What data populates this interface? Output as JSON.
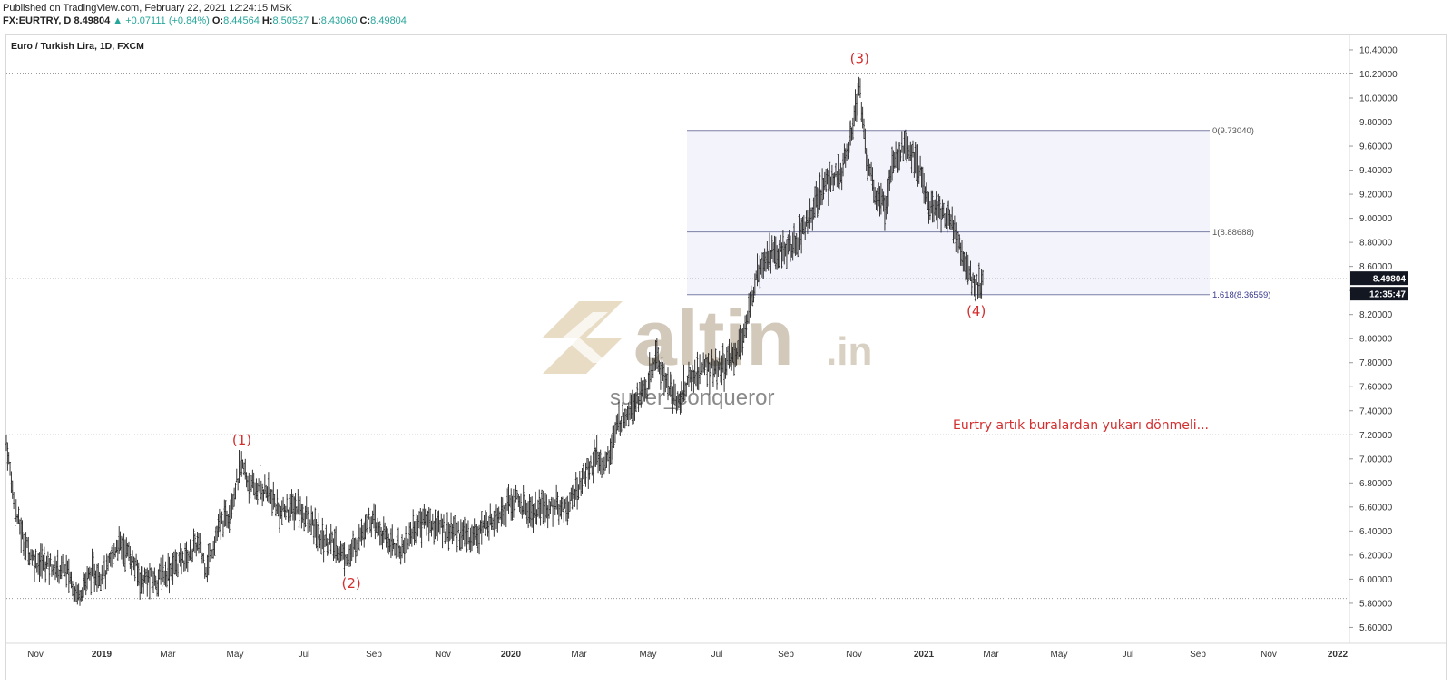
{
  "header": {
    "published": "Published on TradingView.com, February 22, 2021 12:24:15 MSK",
    "symbol_line": "FX:EURTRY, D",
    "last": "8.49804",
    "change": "▲ +0.07111 (+0.84%)",
    "open_label": "O:",
    "open": "8.44564",
    "high_label": "H:",
    "high": "8.50527",
    "low_label": "L:",
    "low": "8.43060",
    "close_label": "C:",
    "close": "8.49804"
  },
  "watermark": {
    "brand": "altin",
    "suffix": ".in",
    "author": "super_conqueror"
  },
  "colors": {
    "bars": "#222222",
    "wave_labels": "#d32f2f",
    "fib_lines": "#7b7fa6",
    "fib_zone": "#f3f3fb",
    "last_badge": "#131722",
    "watermark": "#c9bfae"
  },
  "chart_data": {
    "type": "bar",
    "title": "Euro / Turkish Lira, 1D, FXCM",
    "y_axis": {
      "min": 5.5,
      "max": 10.5,
      "ticks": [
        "10.40000",
        "10.20000",
        "10.00000",
        "9.80000",
        "9.60000",
        "9.40000",
        "9.20000",
        "9.00000",
        "8.80000",
        "8.60000",
        "8.40000",
        "8.20000",
        "8.00000",
        "7.80000",
        "7.60000",
        "7.40000",
        "7.20000",
        "7.00000",
        "6.80000",
        "6.60000",
        "6.40000",
        "6.20000",
        "6.00000",
        "5.80000",
        "5.60000"
      ]
    },
    "x_axis": {
      "labels": [
        "Nov",
        "2019",
        "Mar",
        "May",
        "Jul",
        "Sep",
        "Nov",
        "2020",
        "Mar",
        "May",
        "Jul",
        "Sep",
        "Nov",
        "2021",
        "Mar",
        "May",
        "Jul",
        "Sep",
        "Nov",
        "2022"
      ],
      "bold": [
        "2019",
        "2020",
        "2021",
        "2022"
      ]
    },
    "last_price": "8.49804",
    "countdown": "12:35:47",
    "horizontal_levels": [
      10.2,
      8.49804,
      7.2,
      5.84
    ],
    "fibonacci": [
      {
        "label": "0(9.73040)",
        "value": 9.7304
      },
      {
        "label": "1(8.88688)",
        "value": 8.88688
      },
      {
        "label": "1.618(8.36559)",
        "value": 8.36559
      }
    ],
    "waves": [
      {
        "label": "(1)",
        "date": "2019-05-07",
        "price": 7.03
      },
      {
        "label": "(2)",
        "date": "2019-08-12",
        "price": 6.14
      },
      {
        "label": "(3)",
        "date": "2020-11-06",
        "price": 10.2
      },
      {
        "label": "(4)",
        "date": "2021-02-16",
        "price": 8.4
      }
    ],
    "annotation": "Eurtry artık buralardan yukarı dönmeli...",
    "price_path": [
      [
        "2018-10-01",
        7.14
      ],
      [
        "2018-10-10",
        6.6
      ],
      [
        "2018-10-20",
        6.3
      ],
      [
        "2018-11-01",
        6.15
      ],
      [
        "2018-11-15",
        6.12
      ],
      [
        "2018-12-01",
        6.05
      ],
      [
        "2018-12-10",
        5.87
      ],
      [
        "2018-12-22",
        6.05
      ],
      [
        "2019-01-05",
        6.05
      ],
      [
        "2019-01-15",
        6.3
      ],
      [
        "2019-01-25",
        6.22
      ],
      [
        "2019-02-05",
        6.0
      ],
      [
        "2019-02-20",
        6.0
      ],
      [
        "2019-03-05",
        6.1
      ],
      [
        "2019-03-20",
        6.2
      ],
      [
        "2019-03-28",
        6.3
      ],
      [
        "2019-04-05",
        6.1
      ],
      [
        "2019-04-15",
        6.4
      ],
      [
        "2019-04-25",
        6.55
      ],
      [
        "2019-05-07",
        6.95
      ],
      [
        "2019-05-15",
        6.75
      ],
      [
        "2019-05-28",
        6.75
      ],
      [
        "2019-06-10",
        6.55
      ],
      [
        "2019-06-25",
        6.6
      ],
      [
        "2019-07-05",
        6.5
      ],
      [
        "2019-07-15",
        6.35
      ],
      [
        "2019-07-25",
        6.3
      ],
      [
        "2019-08-05",
        6.2
      ],
      [
        "2019-08-12",
        6.2
      ],
      [
        "2019-08-20",
        6.4
      ],
      [
        "2019-08-28",
        6.5
      ],
      [
        "2019-09-10",
        6.35
      ],
      [
        "2019-09-25",
        6.25
      ],
      [
        "2019-10-05",
        6.4
      ],
      [
        "2019-10-15",
        6.5
      ],
      [
        "2019-10-25",
        6.45
      ],
      [
        "2019-11-10",
        6.4
      ],
      [
        "2019-11-25",
        6.35
      ],
      [
        "2019-12-10",
        6.45
      ],
      [
        "2019-12-25",
        6.6
      ],
      [
        "2020-01-05",
        6.65
      ],
      [
        "2020-01-20",
        6.55
      ],
      [
        "2020-02-05",
        6.6
      ],
      [
        "2020-02-20",
        6.6
      ],
      [
        "2020-03-05",
        6.85
      ],
      [
        "2020-03-15",
        7.0
      ],
      [
        "2020-03-25",
        6.95
      ],
      [
        "2020-04-05",
        7.3
      ],
      [
        "2020-04-20",
        7.5
      ],
      [
        "2020-05-01",
        7.6
      ],
      [
        "2020-05-08",
        7.85
      ],
      [
        "2020-05-20",
        7.6
      ],
      [
        "2020-05-28",
        7.45
      ],
      [
        "2020-06-05",
        7.65
      ],
      [
        "2020-06-20",
        7.75
      ],
      [
        "2020-07-05",
        7.75
      ],
      [
        "2020-07-20",
        7.9
      ],
      [
        "2020-07-30",
        8.2
      ],
      [
        "2020-08-06",
        8.6
      ],
      [
        "2020-08-15",
        8.7
      ],
      [
        "2020-08-25",
        8.7
      ],
      [
        "2020-09-10",
        8.8
      ],
      [
        "2020-09-25",
        9.05
      ],
      [
        "2020-10-05",
        9.3
      ],
      [
        "2020-10-20",
        9.35
      ],
      [
        "2020-10-30",
        9.75
      ],
      [
        "2020-11-06",
        10.1
      ],
      [
        "2020-11-12",
        9.5
      ],
      [
        "2020-11-20",
        9.2
      ],
      [
        "2020-11-28",
        9.1
      ],
      [
        "2020-12-05",
        9.5
      ],
      [
        "2020-12-15",
        9.6
      ],
      [
        "2020-12-25",
        9.5
      ],
      [
        "2021-01-05",
        9.1
      ],
      [
        "2021-01-15",
        9.05
      ],
      [
        "2021-01-25",
        9.0
      ],
      [
        "2021-02-01",
        8.8
      ],
      [
        "2021-02-08",
        8.55
      ],
      [
        "2021-02-16",
        8.43
      ],
      [
        "2021-02-22",
        8.49804
      ]
    ]
  }
}
